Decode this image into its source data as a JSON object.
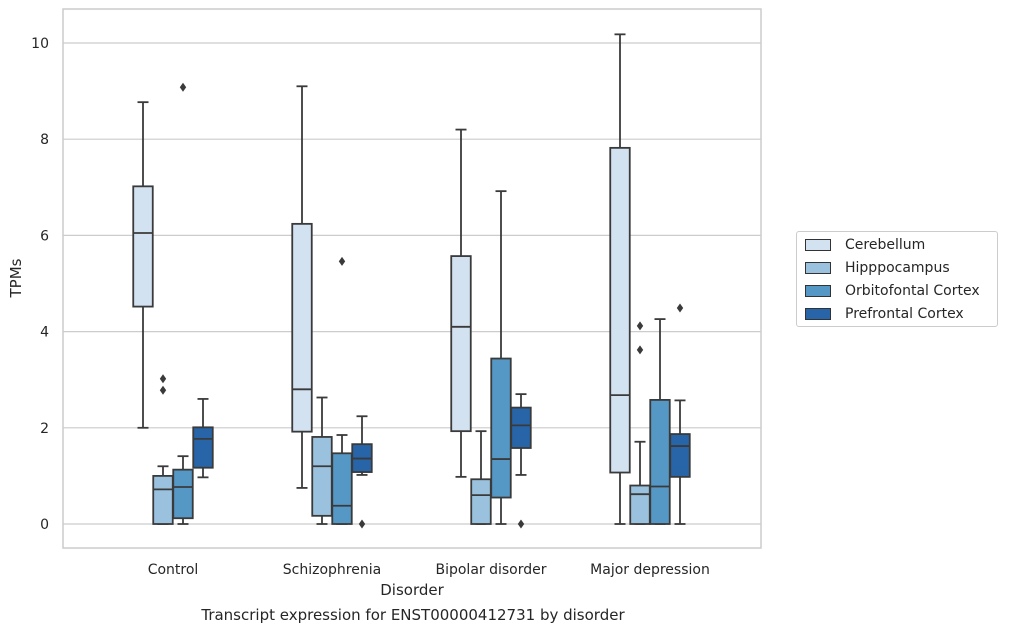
{
  "chart_data": {
    "type": "box",
    "categories": [
      "Control",
      "Schizophrenia",
      "Bipolar disorder",
      "Major depression"
    ],
    "xlabel": "Disorder",
    "ylabel": "TPMs",
    "title": "Transcript expression for ENST00000412731 by disorder",
    "ylim": [
      -0.5,
      10.7
    ],
    "yticks": [
      0,
      2,
      4,
      6,
      8,
      10
    ],
    "grid": "horizontal",
    "legend_position": "right",
    "series": [
      {
        "name": "Cerebellum",
        "color": "#d3e2f1",
        "boxes": [
          {
            "min": 2.0,
            "q1": 4.52,
            "median": 6.05,
            "q3": 7.02,
            "max": 8.77,
            "outliers": []
          },
          {
            "min": 0.75,
            "q1": 1.92,
            "median": 2.8,
            "q3": 6.24,
            "max": 9.1,
            "outliers": []
          },
          {
            "min": 0.98,
            "q1": 1.93,
            "median": 4.1,
            "q3": 5.57,
            "max": 8.2,
            "outliers": []
          },
          {
            "min": 0.0,
            "q1": 1.07,
            "median": 2.68,
            "q3": 7.82,
            "max": 10.18,
            "outliers": []
          }
        ]
      },
      {
        "name": "Hipppocampus",
        "color": "#9ac2de",
        "boxes": [
          {
            "min": 0.0,
            "q1": 0.0,
            "median": 0.72,
            "q3": 1.0,
            "max": 1.2,
            "outliers": [
              3.02,
              2.78
            ]
          },
          {
            "min": 0.0,
            "q1": 0.17,
            "median": 1.2,
            "q3": 1.81,
            "max": 2.63,
            "outliers": []
          },
          {
            "min": 0.0,
            "q1": 0.0,
            "median": 0.6,
            "q3": 0.93,
            "max": 1.93,
            "outliers": []
          },
          {
            "min": 0.0,
            "q1": 0.0,
            "median": 0.62,
            "q3": 0.8,
            "max": 1.71,
            "outliers": [
              4.12,
              3.62
            ]
          }
        ]
      },
      {
        "name": "Orbitofontal Cortex",
        "color": "#5597c5",
        "boxes": [
          {
            "min": 0.0,
            "q1": 0.12,
            "median": 0.77,
            "q3": 1.13,
            "max": 1.41,
            "outliers": [
              9.08
            ]
          },
          {
            "min": 0.0,
            "q1": 0.0,
            "median": 0.38,
            "q3": 1.47,
            "max": 1.85,
            "outliers": [
              5.46
            ]
          },
          {
            "min": 0.0,
            "q1": 0.55,
            "median": 1.35,
            "q3": 3.44,
            "max": 6.92,
            "outliers": []
          },
          {
            "min": 0.0,
            "q1": 0.0,
            "median": 0.78,
            "q3": 2.58,
            "max": 4.26,
            "outliers": []
          }
        ]
      },
      {
        "name": "Prefrontal Cortex",
        "color": "#2765a8",
        "boxes": [
          {
            "min": 0.97,
            "q1": 1.17,
            "median": 1.77,
            "q3": 2.01,
            "max": 2.6,
            "outliers": []
          },
          {
            "min": 1.02,
            "q1": 1.08,
            "median": 1.36,
            "q3": 1.66,
            "max": 2.24,
            "outliers": [
              0.0
            ]
          },
          {
            "min": 1.02,
            "q1": 1.58,
            "median": 2.05,
            "q3": 2.42,
            "max": 2.7,
            "outliers": [
              0.0
            ]
          },
          {
            "min": 0.0,
            "q1": 0.98,
            "median": 1.62,
            "q3": 1.87,
            "max": 2.57,
            "outliers": [
              4.49
            ]
          }
        ]
      }
    ]
  }
}
